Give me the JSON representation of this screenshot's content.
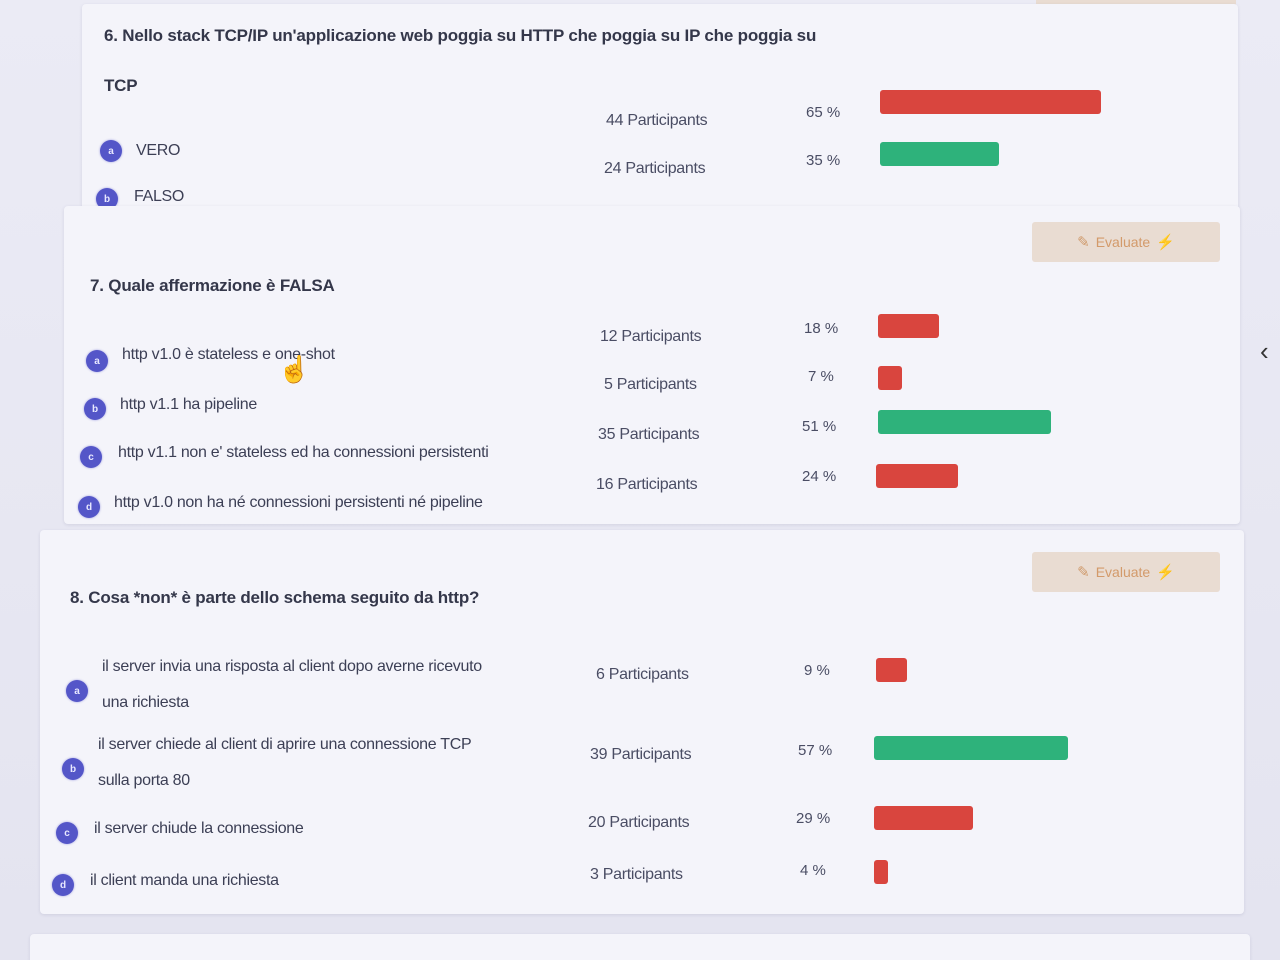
{
  "questions": [
    {
      "title": "6. Nello stack TCP/IP un'applicazione web poggia su HTTP che poggia su IP che poggia su",
      "title_line2": "TCP",
      "options": [
        {
          "letter": "a",
          "text": "VERO",
          "participants": "44 Participants",
          "percent": "65 %",
          "value": 65,
          "correct": false
        },
        {
          "letter": "b",
          "text": "FALSO",
          "participants": "24 Participants",
          "percent": "35 %",
          "value": 35,
          "correct": true
        }
      ]
    },
    {
      "title": "7. Quale affermazione è FALSA",
      "evaluate_label": "Evaluate",
      "options": [
        {
          "letter": "a",
          "text": "http v1.0 è stateless e one-shot",
          "participants": "12 Participants",
          "percent": "18 %",
          "value": 18,
          "correct": false
        },
        {
          "letter": "b",
          "text": "http v1.1 ha pipeline",
          "participants": "5 Participants",
          "percent": "7 %",
          "value": 7,
          "correct": false
        },
        {
          "letter": "c",
          "text": "http v1.1 non e' stateless ed ha connessioni persistenti",
          "participants": "35 Participants",
          "percent": "51 %",
          "value": 51,
          "correct": true
        },
        {
          "letter": "d",
          "text": "http v1.0 non ha né connessioni persistenti né pipeline",
          "participants": "16 Participants",
          "percent": "24 %",
          "value": 24,
          "correct": false
        }
      ]
    },
    {
      "title": "8. Cosa *non* è parte dello schema seguito da http?",
      "evaluate_label": "Evaluate",
      "options": [
        {
          "letter": "a",
          "text": "il server invia una risposta al client dopo averne ricevuto",
          "text_line2": "una richiesta",
          "participants": "6 Participants",
          "percent": "9 %",
          "value": 9,
          "correct": false
        },
        {
          "letter": "b",
          "text": "il server chiede al client di aprire una connessione TCP",
          "text_line2": "sulla porta 80",
          "participants": "39 Participants",
          "percent": "57 %",
          "value": 57,
          "correct": true
        },
        {
          "letter": "c",
          "text": "il server chiude la connessione",
          "participants": "20 Participants",
          "percent": "29 %",
          "value": 29,
          "correct": false
        },
        {
          "letter": "d",
          "text": "il client manda una richiesta",
          "participants": "3 Participants",
          "percent": "4 %",
          "value": 4,
          "correct": false
        }
      ]
    }
  ],
  "colors": {
    "wrong": "#d9453e",
    "correct": "#2eb27b",
    "letter_badge": "#5456c8",
    "evaluate_bg": "#e9dcd2"
  },
  "icons": {
    "evaluate": "person-edit-icon",
    "bolt": "bolt-icon",
    "cursor": "hand-pointer-icon"
  }
}
